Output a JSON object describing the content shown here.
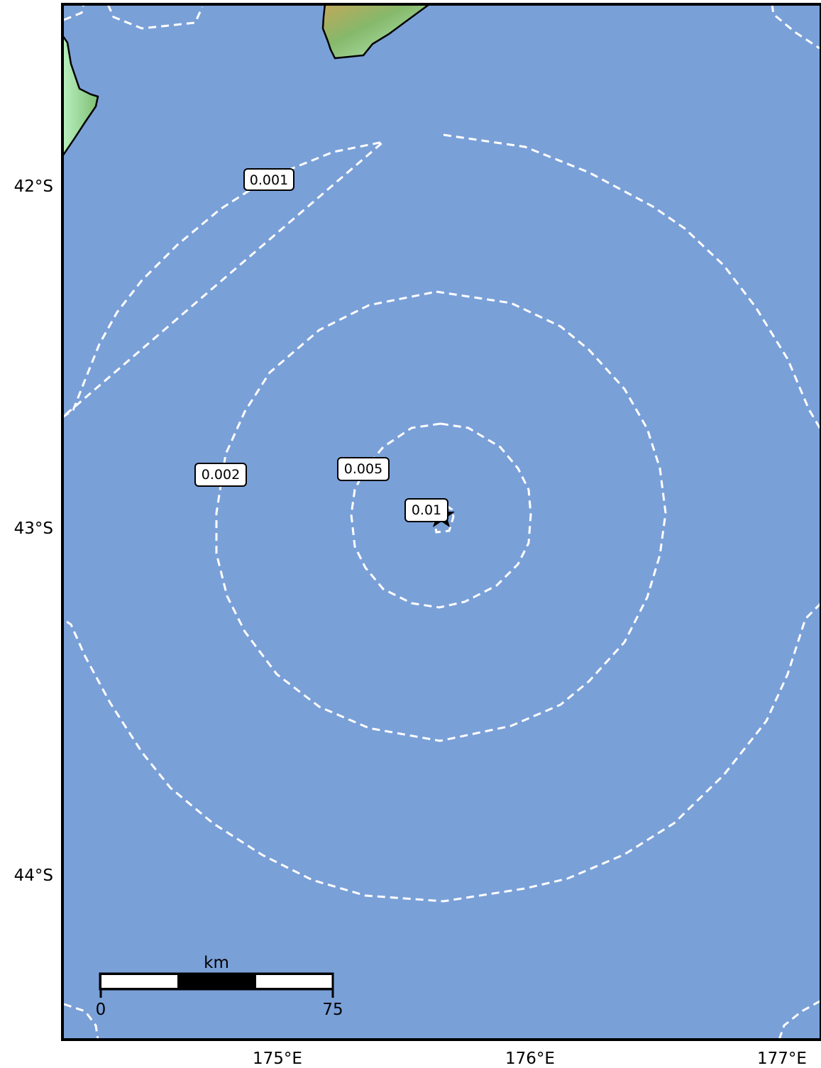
{
  "map": {
    "ocean_color": "#7aa0d8",
    "land_colors": [
      "#b9f0c0",
      "#7fbf73",
      "#c9b25a",
      "#8a6f3a"
    ],
    "contour_color": "#ffffff",
    "epicenter_icon": "star-icon"
  },
  "axes": {
    "lat_ticks": [
      "42°S",
      "43°S",
      "44°S"
    ],
    "lon_ticks": [
      "175°E",
      "176°E",
      "177°E"
    ]
  },
  "contours": [
    {
      "level": "0.001"
    },
    {
      "level": "0.002"
    },
    {
      "level": "0.005"
    },
    {
      "level": "0.01"
    }
  ],
  "scale_bar": {
    "unit": "km",
    "start": "0",
    "end": "75"
  }
}
